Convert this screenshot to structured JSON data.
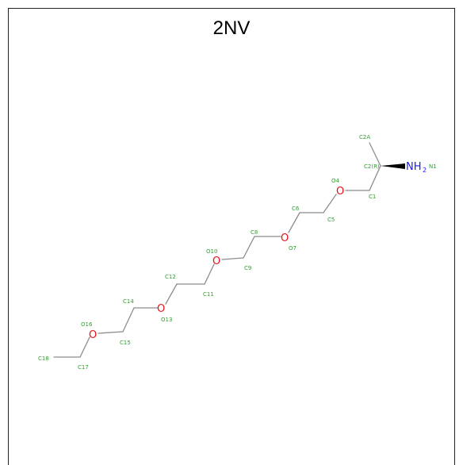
{
  "title": "2NV",
  "colors": {
    "bond": "#8c8c8c",
    "oxygen": "#e8121b",
    "nitrogen": "#1a1aff",
    "label": "#2e9e2e"
  },
  "heteroatoms": {
    "o4": "O",
    "o7": "O",
    "o10": "O",
    "o13": "O",
    "o16": "O",
    "amine": "NH",
    "amine_sub": "2"
  },
  "labels": {
    "C2A": "C2A",
    "C2": "C2(R)",
    "N1": "N1",
    "O4": "O4",
    "C1": "C1",
    "C6": "C6",
    "C5": "C5",
    "O7": "O7",
    "C8": "C8",
    "C9": "C9",
    "O10": "O10",
    "C12": "C12",
    "C11": "C11",
    "C14": "C14",
    "O13": "O13",
    "O16": "O16",
    "C15": "C15",
    "C18": "C18",
    "C17": "C17"
  }
}
